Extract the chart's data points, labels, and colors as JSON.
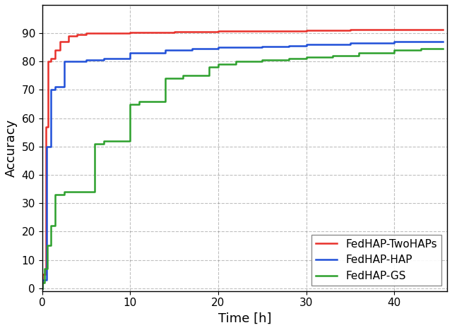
{
  "title": "",
  "xlabel": "Time [h]",
  "ylabel": "Accuracy",
  "xlim": [
    0,
    46
  ],
  "ylim": [
    -1,
    100
  ],
  "xticks": [
    0,
    10,
    20,
    30,
    40
  ],
  "yticks": [
    0,
    10,
    20,
    30,
    40,
    50,
    60,
    70,
    80,
    90
  ],
  "grid": true,
  "legend_loc": "lower right",
  "series": [
    {
      "label": "FedHAP-TwoHAPs",
      "color": "#e8302a",
      "linewidth": 1.8,
      "x": [
        0,
        0.05,
        0.05,
        0.4,
        0.4,
        0.7,
        0.7,
        1.0,
        1.0,
        1.5,
        1.5,
        2.0,
        2.0,
        3.0,
        3.0,
        4.0,
        4.0,
        5.0,
        5.0,
        7.0,
        7.0,
        10.0,
        10.0,
        15.0,
        15.0,
        20.0,
        20.0,
        25.0,
        25.0,
        30.0,
        30.0,
        35.0,
        35.0,
        40.0,
        40.0,
        45.5
      ],
      "y": [
        0,
        0,
        5,
        5,
        57,
        57,
        80,
        80,
        81,
        81,
        84,
        84,
        87,
        87,
        89,
        89,
        89.5,
        89.5,
        90.0,
        90.0,
        90.1,
        90.1,
        90.3,
        90.3,
        90.5,
        90.5,
        90.7,
        90.7,
        90.9,
        90.9,
        91.0,
        91.0,
        91.2,
        91.2,
        91.4,
        91.4
      ]
    },
    {
      "label": "FedHAP-HAP",
      "color": "#1f4fd8",
      "linewidth": 1.8,
      "x": [
        0,
        0.05,
        0.05,
        0.5,
        0.5,
        1.0,
        1.0,
        1.5,
        1.5,
        2.5,
        2.5,
        5.0,
        5.0,
        7.0,
        7.0,
        10.0,
        10.0,
        14.0,
        14.0,
        17.0,
        17.0,
        20.0,
        20.0,
        25.0,
        25.0,
        28.0,
        28.0,
        30.0,
        30.0,
        35.0,
        35.0,
        40.0,
        40.0,
        45.5
      ],
      "y": [
        0,
        0,
        3,
        3,
        50,
        50,
        70,
        70,
        71,
        71,
        80,
        80,
        80.5,
        80.5,
        81,
        81,
        83,
        83,
        84,
        84,
        84.5,
        84.5,
        85,
        85,
        85.3,
        85.3,
        85.6,
        85.6,
        86,
        86,
        86.5,
        86.5,
        87,
        87
      ]
    },
    {
      "label": "FedHAP-GS",
      "color": "#2ca02c",
      "linewidth": 1.8,
      "x": [
        0,
        0.05,
        0.05,
        0.3,
        0.3,
        0.6,
        0.6,
        1.0,
        1.0,
        1.5,
        1.5,
        2.5,
        2.5,
        6.0,
        6.0,
        7.0,
        7.0,
        10.0,
        10.0,
        11.0,
        11.0,
        14.0,
        14.0,
        16.0,
        16.0,
        19.0,
        19.0,
        20.0,
        20.0,
        22.0,
        22.0,
        25.0,
        25.0,
        28.0,
        28.0,
        30.0,
        30.0,
        33.0,
        33.0,
        36.0,
        36.0,
        40.0,
        40.0,
        43.0,
        43.0,
        45.5
      ],
      "y": [
        0,
        0,
        2,
        2,
        7,
        7,
        15,
        15,
        22,
        22,
        33,
        33,
        34,
        34,
        51,
        51,
        52,
        52,
        65,
        65,
        66,
        66,
        74,
        74,
        75,
        75,
        78,
        78,
        79,
        79,
        80,
        80,
        80.5,
        80.5,
        81,
        81,
        81.5,
        81.5,
        82,
        82,
        83,
        83,
        84,
        84,
        84.5,
        84.5
      ]
    }
  ]
}
